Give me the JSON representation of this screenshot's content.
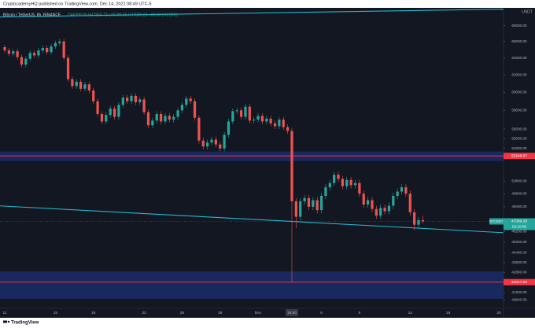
{
  "header": {
    "publisher": "CryptocademyHQ published on TradingView.com, Dec 14, 2021 08:49 UTC-5"
  },
  "footer": {
    "brand": "TradingView"
  },
  "chart_data": {
    "type": "candlestick",
    "symbol": "Bitcoin / TetherUS, 8h, BINANCE",
    "ohlc_legend": "O46999.99 H47959.72 L46789.65 C47089.29 +89.30 (+0.19%)",
    "currency": "USDT",
    "symbol_tag": "BTCUSDT",
    "countdown": "02:10:09",
    "last_price": 47089.29,
    "up_color": "#26a69a",
    "down_color": "#ef5350",
    "log_scale": true,
    "ylim": [
      40000,
      70300
    ],
    "yticks": [
      {
        "value": 68000,
        "label": "68000.00"
      },
      {
        "value": 66000,
        "label": "66000.00"
      },
      {
        "value": 64000,
        "label": "64000.00"
      },
      {
        "value": 62000,
        "label": "62000.00"
      },
      {
        "value": 60000,
        "label": "60000.00"
      },
      {
        "value": 58000,
        "label": "58000.00"
      },
      {
        "value": 56000,
        "label": "56000.00"
      },
      {
        "value": 55000,
        "label": "55000.00"
      },
      {
        "value": 54000,
        "label": "54000.00"
      },
      {
        "value": 50800,
        "label": "50800.00"
      },
      {
        "value": 49600,
        "label": "49600.00"
      },
      {
        "value": 48400,
        "label": "48400.00"
      },
      {
        "value": 46200,
        "label": "46200.00"
      },
      {
        "value": 45300,
        "label": "45300.00"
      },
      {
        "value": 44400,
        "label": "44400.00"
      },
      {
        "value": 43600,
        "label": "43600.00"
      },
      {
        "value": 42800,
        "label": "42800.00"
      },
      {
        "value": 41200,
        "label": "41200.00"
      },
      {
        "value": 40640,
        "label": "40640.00"
      }
    ],
    "price_levels": [
      53246.07,
      {
        "value": 42017,
        "label": "42017.00"
      }
    ],
    "level_color": "#f23645",
    "zones": [
      [
        52740,
        53680
      ],
      [
        40720,
        42880
      ]
    ],
    "zone_color": "#1b2b66",
    "trendlines": [
      {
        "start": 69110,
        "end": 70130
      },
      {
        "start": 48480,
        "end": 46100
      }
    ],
    "trendline_color": "#22b8cf",
    "categories": [
      "11",
      null,
      null,
      null,
      null,
      null,
      null,
      null,
      null,
      null,
      null,
      null,
      "15",
      null,
      null,
      null,
      null,
      null,
      null,
      null,
      null,
      "18",
      null,
      null,
      null,
      null,
      null,
      null,
      null,
      null,
      null,
      null,
      null,
      "22",
      null,
      null,
      null,
      null,
      null,
      null,
      null,
      null,
      "25",
      null,
      null,
      null,
      null,
      null,
      null,
      null,
      null,
      "28",
      null,
      null,
      null,
      null,
      null,
      null,
      null,
      null,
      "Dec",
      null,
      null,
      null,
      null,
      null,
      null,
      null,
      "19:00",
      null,
      null,
      null,
      null,
      null,
      null,
      "6",
      null,
      null,
      null,
      null,
      null,
      null,
      null,
      null,
      "9",
      null,
      null,
      null,
      null,
      null,
      null,
      null,
      null,
      null,
      null,
      null,
      "13",
      null,
      null,
      null,
      null,
      null,
      null,
      null,
      null,
      "16",
      null,
      null,
      null,
      null,
      null,
      null,
      null,
      null,
      null,
      null,
      null,
      "20"
    ],
    "open": [
      65300,
      64900,
      64500,
      64800,
      64100,
      63200,
      63900,
      64600,
      64300,
      64900,
      65200,
      64700,
      65400,
      65800,
      66000,
      64000,
      61500,
      60700,
      61200,
      60400,
      60900,
      60200,
      59000,
      57600,
      56800,
      57500,
      58200,
      57300,
      58600,
      59400,
      59000,
      59600,
      58900,
      59200,
      57800,
      56400,
      56900,
      57600,
      56800,
      57400,
      57000,
      57300,
      58000,
      58600,
      59300,
      59000,
      57200,
      54800,
      54200,
      54600,
      54900,
      54400,
      54000,
      55400,
      56800,
      57900,
      58000,
      57300,
      58400,
      56900,
      57000,
      57400,
      56800,
      57100,
      56600,
      56300,
      57000,
      56200,
      55800,
      48900,
      47500,
      48900,
      49200,
      48400,
      49000,
      48100,
      49400,
      50200,
      50600,
      51400,
      51000,
      50300,
      50900,
      50400,
      50600,
      49600,
      48600,
      49000,
      48200,
      47600,
      48300,
      48000,
      48500,
      49400,
      49800,
      50200,
      49600,
      47900,
      46800,
      47200,
      null,
      null,
      null,
      null,
      null,
      null,
      null,
      null,
      null,
      null,
      null,
      null,
      null,
      null,
      null,
      null,
      null,
      null
    ],
    "high": [
      65600,
      65200,
      65100,
      65100,
      64400,
      64200,
      64900,
      64900,
      65200,
      65500,
      65500,
      65700,
      66100,
      66300,
      66300,
      64300,
      61800,
      61500,
      61500,
      61200,
      61200,
      60500,
      59300,
      57900,
      57800,
      58500,
      58500,
      58900,
      59700,
      59700,
      59900,
      59900,
      59500,
      59500,
      58100,
      57200,
      57900,
      57900,
      57700,
      57700,
      57600,
      58300,
      58900,
      59600,
      59600,
      59300,
      57500,
      55100,
      54900,
      55200,
      55200,
      54700,
      55700,
      57100,
      58200,
      58300,
      58300,
      58700,
      58700,
      57300,
      57700,
      57700,
      57400,
      57400,
      56900,
      57300,
      57300,
      56500,
      56100,
      49200,
      49200,
      49500,
      49500,
      49300,
      49300,
      49700,
      50500,
      50900,
      51700,
      51700,
      51300,
      51200,
      51200,
      50900,
      50900,
      49900,
      49300,
      49300,
      48500,
      48600,
      48600,
      48800,
      49700,
      50100,
      50500,
      50500,
      49900,
      48200,
      47500,
      47600,
      null,
      null,
      null,
      null,
      null,
      null,
      null,
      null,
      null,
      null,
      null,
      null,
      null,
      null,
      null,
      null,
      null,
      null
    ],
    "low": [
      64600,
      64200,
      64200,
      63800,
      62900,
      62900,
      63600,
      64000,
      64000,
      64600,
      64400,
      64400,
      65100,
      65500,
      63700,
      61200,
      60400,
      60400,
      60100,
      60100,
      59900,
      58700,
      57300,
      56500,
      56500,
      57200,
      57000,
      57000,
      58300,
      58700,
      58700,
      58600,
      58600,
      57500,
      56100,
      56100,
      56600,
      56500,
      56500,
      56700,
      56700,
      57000,
      57700,
      58300,
      58700,
      56900,
      54500,
      53900,
      53900,
      54300,
      54100,
      53700,
      53700,
      55100,
      56500,
      57600,
      57000,
      57000,
      56600,
      56600,
      56700,
      56500,
      56500,
      56300,
      56000,
      56000,
      55900,
      55500,
      42000,
      46500,
      47200,
      48600,
      48100,
      48100,
      47800,
      47800,
      49100,
      49900,
      50300,
      50700,
      50000,
      50000,
      50100,
      50100,
      49300,
      48300,
      48300,
      47900,
      47300,
      47300,
      47700,
      47700,
      48200,
      49100,
      49500,
      49300,
      47600,
      46300,
      46500,
      46900,
      null,
      null,
      null,
      null,
      null,
      null,
      null,
      null,
      null,
      null,
      null,
      null,
      null,
      null,
      null,
      null,
      null,
      null
    ],
    "close": [
      64900,
      64500,
      64800,
      64100,
      63200,
      63900,
      64600,
      64300,
      64900,
      65200,
      64700,
      65400,
      65800,
      66000,
      64000,
      61500,
      60700,
      61200,
      60400,
      60900,
      60200,
      59000,
      57600,
      56800,
      57500,
      58200,
      57300,
      58600,
      59400,
      59000,
      59600,
      58900,
      59200,
      57800,
      56400,
      56900,
      57600,
      56800,
      57400,
      57000,
      57300,
      58000,
      58600,
      59300,
      59000,
      57200,
      54800,
      54200,
      54600,
      54900,
      54400,
      54000,
      55400,
      56800,
      57900,
      58000,
      57300,
      58400,
      56900,
      57000,
      57400,
      56800,
      57100,
      56600,
      56300,
      57000,
      56200,
      55800,
      48900,
      47500,
      48900,
      49200,
      48400,
      49000,
      48100,
      49400,
      50200,
      50600,
      51400,
      51000,
      50300,
      50900,
      50400,
      50600,
      49600,
      48600,
      49000,
      48200,
      47600,
      48300,
      48000,
      48500,
      49400,
      49800,
      50200,
      49600,
      47900,
      46800,
      47200,
      47089.29,
      null,
      null,
      null,
      null,
      null,
      null,
      null,
      null,
      null,
      null,
      null,
      null,
      null,
      null,
      null,
      null,
      null,
      null
    ]
  }
}
